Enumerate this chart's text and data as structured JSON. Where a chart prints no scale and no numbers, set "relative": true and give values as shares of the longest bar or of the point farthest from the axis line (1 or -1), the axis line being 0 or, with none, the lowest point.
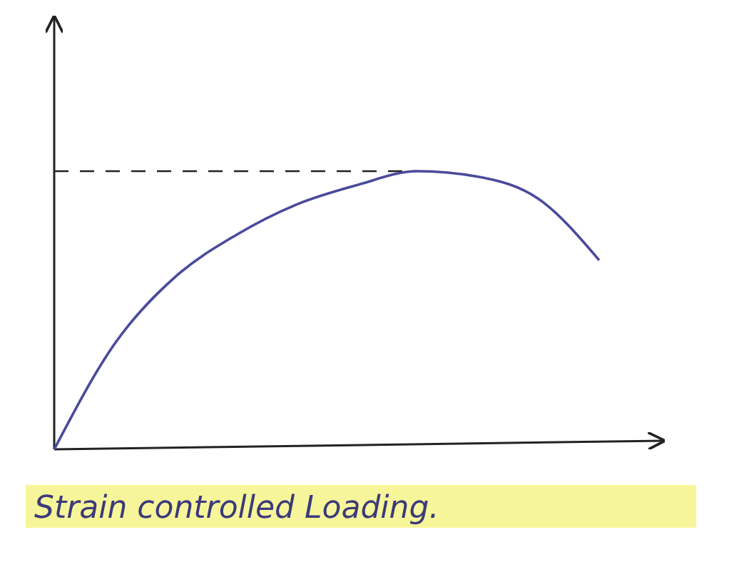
{
  "chart_data": {
    "type": "line",
    "relative": true,
    "categories": [
      null,
      null,
      null,
      null,
      null,
      null,
      null,
      null,
      null,
      null
    ],
    "series": [
      {
        "color": "#4a4a9c",
        "values": [
          0,
          0.38,
          0.62,
          0.77,
          0.88,
          0.95,
          1,
          0.98,
          0.9,
          0.68
        ]
      }
    ],
    "ref_lines": [
      {
        "axis": "y",
        "value": 1,
        "line_style": "dashed",
        "color": "#222222"
      }
    ],
    "annotations": [
      "Strain controlled Loading."
    ],
    "line_style": "solid",
    "marker": "none",
    "grid": false
  }
}
